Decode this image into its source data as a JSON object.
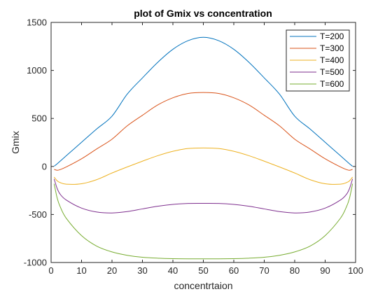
{
  "chart_data": {
    "type": "line",
    "title": "plot of Gmix vs concentration",
    "xlabel": "concentrtaion",
    "ylabel": "Gmix",
    "xlim": [
      0,
      100
    ],
    "ylim": [
      -1000,
      1500
    ],
    "xticks": [
      "0",
      "10",
      "20",
      "30",
      "40",
      "50",
      "60",
      "70",
      "80",
      "90",
      "100"
    ],
    "yticks": [
      "-1000",
      "-500",
      "0",
      "500",
      "1000",
      "1500"
    ],
    "grid": false,
    "legend_position": "top-right",
    "x": [
      1,
      2,
      3,
      5,
      10,
      15,
      20,
      25,
      30,
      35,
      40,
      45,
      50,
      55,
      60,
      65,
      70,
      75,
      80,
      85,
      90,
      95,
      97,
      98,
      99
    ],
    "series": [
      {
        "name": "T=200",
        "color": "#0072BD",
        "values": [
          2,
          28,
          56,
          112,
          252,
          391,
          524,
          753,
          922,
          1084,
          1220,
          1310,
          1345,
          1310,
          1220,
          1084,
          922,
          753,
          524,
          391,
          252,
          112,
          56,
          28,
          2
        ]
      },
      {
        "name": "T=300",
        "color": "#D95319",
        "values": [
          -30,
          -40,
          -32,
          -5,
          80,
          183,
          284,
          423,
          533,
          640,
          715,
          760,
          770,
          760,
          715,
          640,
          533,
          423,
          284,
          183,
          80,
          -5,
          -32,
          -40,
          -30
        ]
      },
      {
        "name": "T=400",
        "color": "#EDB120",
        "values": [
          -110,
          -150,
          -168,
          -185,
          -180,
          -137,
          -68,
          -5,
          55,
          112,
          158,
          187,
          193,
          187,
          158,
          112,
          55,
          -5,
          -68,
          -137,
          -180,
          -185,
          -168,
          -150,
          -110
        ]
      },
      {
        "name": "T=500",
        "color": "#7E2F8E",
        "values": [
          -130,
          -230,
          -290,
          -350,
          -434,
          -474,
          -484,
          -470,
          -442,
          -414,
          -395,
          -385,
          -384,
          -385,
          -395,
          -414,
          -442,
          -470,
          -484,
          -474,
          -434,
          -350,
          -290,
          -230,
          -130
        ]
      },
      {
        "name": "T=600",
        "color": "#77AC30",
        "values": [
          -180,
          -330,
          -420,
          -540,
          -720,
          -830,
          -890,
          -925,
          -945,
          -955,
          -960,
          -962,
          -962,
          -962,
          -960,
          -955,
          -945,
          -925,
          -890,
          -830,
          -720,
          -540,
          -420,
          -330,
          -180
        ]
      }
    ]
  }
}
